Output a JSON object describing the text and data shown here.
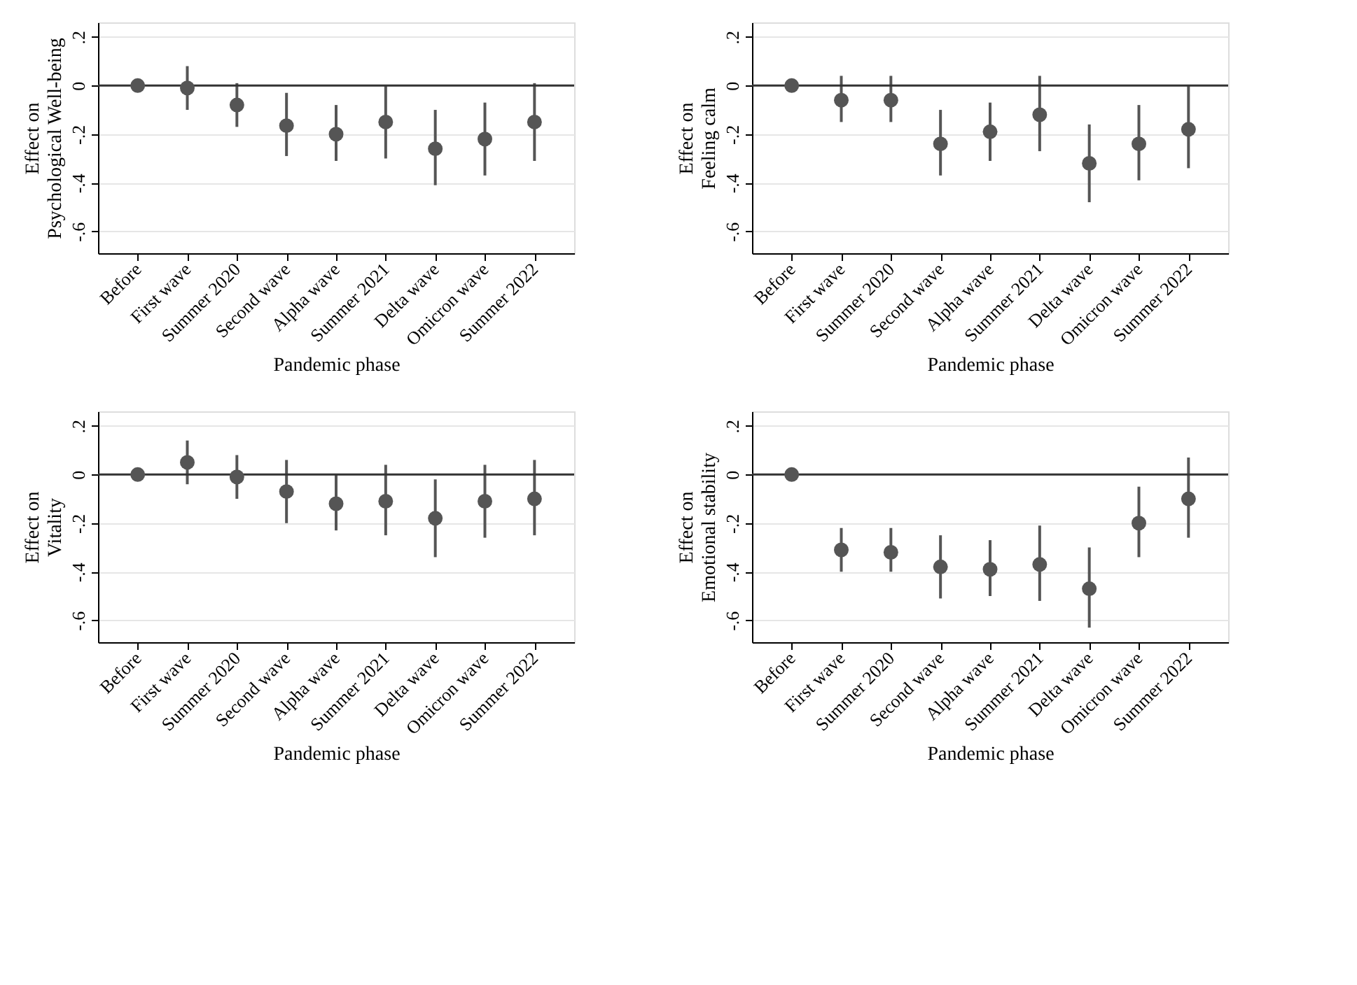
{
  "chart_data": [
    {
      "type": "scatter",
      "ylabel": "Effect on\nPsychological Well-being",
      "xlabel": "Pandemic phase",
      "categories": [
        "Before",
        "First wave",
        "Summer 2020",
        "Second wave",
        "Alpha wave",
        "Summer 2021",
        "Delta wave",
        "Omicron wave",
        "Summer 2022"
      ],
      "series": [
        {
          "color": "#555555",
          "values": [
            0,
            -0.01,
            -0.08,
            -0.165,
            -0.2,
            -0.15,
            -0.26,
            -0.22,
            -0.15
          ],
          "errors": [
            null,
            [
              -0.1,
              0.08
            ],
            [
              -0.17,
              0.01
            ],
            [
              -0.29,
              -0.03
            ],
            [
              -0.31,
              -0.08
            ],
            [
              -0.3,
              0.0
            ],
            [
              -0.41,
              -0.1
            ],
            [
              -0.37,
              -0.07
            ],
            [
              -0.31,
              0.01
            ]
          ]
        }
      ],
      "ylim": [
        -0.69,
        0.26
      ],
      "yticks": [
        {
          "value": 0.2,
          "label": ".2"
        },
        0,
        {
          "value": -0.2,
          "label": "-.2"
        },
        {
          "value": -0.4,
          "label": "-.4"
        },
        {
          "value": -0.6,
          "label": "-.6"
        }
      ],
      "grid": "y",
      "marker": "circle",
      "ref_lines": [
        {
          "axis": "y",
          "value": 0,
          "color": "#333333"
        }
      ]
    },
    {
      "type": "scatter",
      "ylabel": "Effect on\nFeeling calm",
      "xlabel": "Pandemic phase",
      "categories": [
        "Before",
        "First wave",
        "Summer 2020",
        "Second wave",
        "Alpha wave",
        "Summer 2021",
        "Delta wave",
        "Omicron wave",
        "Summer 2022"
      ],
      "series": [
        {
          "color": "#555555",
          "values": [
            0,
            -0.06,
            -0.06,
            -0.24,
            -0.19,
            -0.12,
            -0.32,
            -0.24,
            -0.18
          ],
          "errors": [
            null,
            [
              -0.15,
              0.04
            ],
            [
              -0.15,
              0.04
            ],
            [
              -0.37,
              -0.1
            ],
            [
              -0.31,
              -0.07
            ],
            [
              -0.27,
              0.04
            ],
            [
              -0.48,
              -0.16
            ],
            [
              -0.39,
              -0.08
            ],
            [
              -0.34,
              0.0
            ]
          ]
        }
      ],
      "ylim": [
        -0.69,
        0.26
      ],
      "yticks": [
        {
          "value": 0.2,
          "label": ".2"
        },
        0,
        {
          "value": -0.2,
          "label": "-.2"
        },
        {
          "value": -0.4,
          "label": "-.4"
        },
        {
          "value": -0.6,
          "label": "-.6"
        }
      ],
      "grid": "y",
      "marker": "circle",
      "ref_lines": [
        {
          "axis": "y",
          "value": 0,
          "color": "#333333"
        }
      ]
    },
    {
      "type": "scatter",
      "ylabel": "Effect on\nVitality",
      "xlabel": "Pandemic phase",
      "categories": [
        "Before",
        "First wave",
        "Summer 2020",
        "Second wave",
        "Alpha wave",
        "Summer 2021",
        "Delta wave",
        "Omicron wave",
        "Summer 2022"
      ],
      "series": [
        {
          "color": "#555555",
          "values": [
            0,
            0.05,
            -0.01,
            -0.07,
            -0.12,
            -0.11,
            -0.18,
            -0.11,
            -0.1
          ],
          "errors": [
            null,
            [
              -0.04,
              0.14
            ],
            [
              -0.1,
              0.08
            ],
            [
              -0.2,
              0.06
            ],
            [
              -0.23,
              0.0
            ],
            [
              -0.25,
              0.04
            ],
            [
              -0.34,
              -0.02
            ],
            [
              -0.26,
              0.04
            ],
            [
              -0.25,
              0.06
            ]
          ]
        }
      ],
      "ylim": [
        -0.69,
        0.26
      ],
      "yticks": [
        {
          "value": 0.2,
          "label": ".2"
        },
        0,
        {
          "value": -0.2,
          "label": "-.2"
        },
        {
          "value": -0.4,
          "label": "-.4"
        },
        {
          "value": -0.6,
          "label": "-.6"
        }
      ],
      "grid": "y",
      "marker": "circle",
      "ref_lines": [
        {
          "axis": "y",
          "value": 0,
          "color": "#333333"
        }
      ]
    },
    {
      "type": "scatter",
      "ylabel": "Effect on\nEmotional stability",
      "xlabel": "Pandemic phase",
      "categories": [
        "Before",
        "First wave",
        "Summer 2020",
        "Second wave",
        "Alpha wave",
        "Summer 2021",
        "Delta wave",
        "Omicron wave",
        "Summer 2022"
      ],
      "series": [
        {
          "color": "#555555",
          "values": [
            0,
            -0.31,
            -0.32,
            -0.38,
            -0.39,
            -0.37,
            -0.47,
            -0.2,
            -0.1
          ],
          "errors": [
            null,
            [
              -0.4,
              -0.22
            ],
            [
              -0.4,
              -0.22
            ],
            [
              -0.51,
              -0.25
            ],
            [
              -0.5,
              -0.27
            ],
            [
              -0.52,
              -0.21
            ],
            [
              -0.63,
              -0.3
            ],
            [
              -0.34,
              -0.05
            ],
            [
              -0.26,
              0.07
            ]
          ]
        }
      ],
      "ylim": [
        -0.69,
        0.26
      ],
      "yticks": [
        {
          "value": 0.2,
          "label": ".2"
        },
        0,
        {
          "value": -0.2,
          "label": "-.2"
        },
        {
          "value": -0.4,
          "label": "-.4"
        },
        {
          "value": -0.6,
          "label": "-.6"
        }
      ],
      "grid": "y",
      "marker": "circle",
      "ref_lines": [
        {
          "axis": "y",
          "value": 0,
          "color": "#333333"
        }
      ]
    }
  ]
}
